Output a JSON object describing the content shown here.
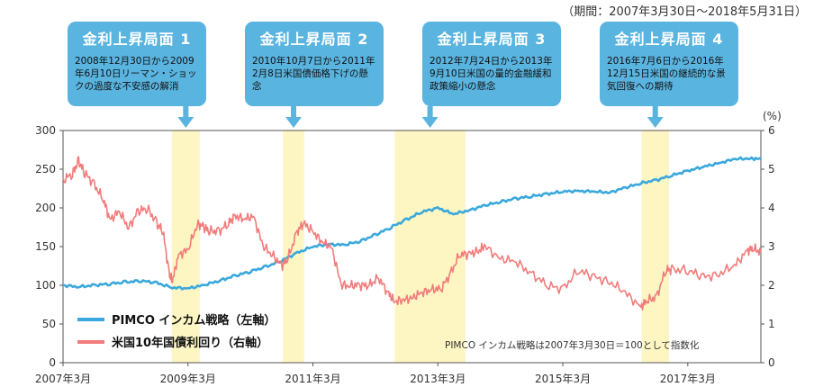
{
  "period_note": "（期間：2007年3月30日～2018年5月31日）",
  "phases": [
    {
      "title": "金利上昇局面 1",
      "desc": "2008年12月30日から2009年6月10日リーマン・ショックの過度な不安感の解消",
      "start": 2008.99,
      "end": 2009.44
    },
    {
      "title": "金利上昇局面 2",
      "desc": "2010年10月7日から2011年2月8日米国債価格下げの懸念",
      "start": 2010.77,
      "end": 2011.11
    },
    {
      "title": "金利上昇局面 3",
      "desc": "2012年7月24日から2013年9月10日米国の量的金融緩和政策縮小の懸念",
      "start": 2012.56,
      "end": 2013.69
    },
    {
      "title": "金利上昇局面 4",
      "desc": "2016年7月6日から2016年12月15日米国の継続的な景気回復への期待",
      "start": 2016.51,
      "end": 2016.95
    }
  ],
  "chart_data": {
    "type": "line",
    "x_ticks": [
      "2007年3月",
      "2009年3月",
      "2011年3月",
      "2013年3月",
      "2015年3月",
      "2017年3月"
    ],
    "x_tick_values": [
      2007.25,
      2009.25,
      2011.25,
      2013.25,
      2015.25,
      2017.25
    ],
    "xlim": [
      2007.25,
      2018.42
    ],
    "left_axis": {
      "ylim": [
        0,
        300
      ],
      "ticks": [
        0,
        50,
        100,
        150,
        200,
        250,
        300
      ]
    },
    "right_axis": {
      "unit": "(%)",
      "ylim": [
        0,
        6
      ],
      "ticks": [
        0,
        1,
        2,
        3,
        4,
        5,
        6
      ]
    },
    "series": [
      {
        "name": "PIMCO インカム戦略（左軸）",
        "axis": "left",
        "color": "#3aa8dc",
        "x": [
          2007.25,
          2007.5,
          2007.75,
          2008.0,
          2008.25,
          2008.5,
          2008.75,
          2009.0,
          2009.25,
          2009.5,
          2009.75,
          2010.0,
          2010.25,
          2010.5,
          2010.75,
          2011.0,
          2011.25,
          2011.5,
          2011.75,
          2012.0,
          2012.25,
          2012.5,
          2012.75,
          2013.0,
          2013.25,
          2013.5,
          2013.75,
          2014.0,
          2014.25,
          2014.5,
          2014.75,
          2015.0,
          2015.25,
          2015.5,
          2015.75,
          2016.0,
          2016.25,
          2016.5,
          2016.75,
          2017.0,
          2017.25,
          2017.5,
          2017.75,
          2018.0,
          2018.25,
          2018.42
        ],
        "values": [
          100,
          98,
          100,
          102,
          104,
          106,
          103,
          97,
          96,
          100,
          106,
          112,
          118,
          124,
          132,
          142,
          150,
          153,
          152,
          157,
          165,
          175,
          185,
          195,
          200,
          192,
          197,
          203,
          208,
          212,
          215,
          218,
          221,
          222,
          221,
          220,
          226,
          232,
          236,
          242,
          248,
          253,
          258,
          263,
          264,
          263
        ]
      },
      {
        "name": "米国10年国債利回り（右軸）",
        "axis": "right",
        "color": "#f27b7b",
        "x": [
          2007.25,
          2007.4,
          2007.5,
          2007.6,
          2007.75,
          2007.9,
          2008.0,
          2008.15,
          2008.3,
          2008.45,
          2008.6,
          2008.75,
          2008.85,
          2008.95,
          2009.0,
          2009.1,
          2009.25,
          2009.4,
          2009.5,
          2009.6,
          2009.75,
          2009.9,
          2010.0,
          2010.15,
          2010.3,
          2010.45,
          2010.6,
          2010.75,
          2010.85,
          2011.0,
          2011.1,
          2011.25,
          2011.4,
          2011.55,
          2011.7,
          2011.85,
          2012.0,
          2012.15,
          2012.3,
          2012.45,
          2012.55,
          2012.7,
          2012.85,
          2013.0,
          2013.15,
          2013.3,
          2013.45,
          2013.6,
          2013.75,
          2013.9,
          2014.0,
          2014.25,
          2014.5,
          2014.75,
          2015.0,
          2015.25,
          2015.5,
          2015.75,
          2016.0,
          2016.25,
          2016.5,
          2016.6,
          2016.75,
          2016.9,
          2017.0,
          2017.25,
          2017.5,
          2017.75,
          2018.0,
          2018.2,
          2018.3,
          2018.42
        ],
        "values": [
          4.7,
          4.9,
          5.2,
          4.9,
          4.6,
          4.2,
          3.7,
          3.9,
          3.5,
          3.9,
          4.0,
          3.6,
          3.4,
          2.3,
          2.1,
          2.8,
          2.9,
          3.6,
          3.5,
          3.4,
          3.4,
          3.6,
          3.8,
          3.7,
          3.8,
          3.0,
          2.8,
          2.5,
          2.7,
          3.4,
          3.6,
          3.4,
          3.1,
          3.0,
          2.0,
          2.0,
          2.0,
          2.0,
          2.2,
          1.8,
          1.6,
          1.6,
          1.7,
          1.8,
          1.9,
          1.9,
          2.3,
          2.8,
          2.8,
          2.9,
          3.0,
          2.7,
          2.6,
          2.3,
          2.0,
          1.9,
          2.4,
          2.2,
          2.1,
          1.8,
          1.45,
          1.6,
          1.7,
          2.4,
          2.4,
          2.4,
          2.2,
          2.3,
          2.5,
          2.9,
          2.95,
          2.85
        ]
      }
    ],
    "note": "PIMCO インカム戦略は2007年3月30日＝100として指数化",
    "grid": false,
    "legend": "bottom-left"
  }
}
